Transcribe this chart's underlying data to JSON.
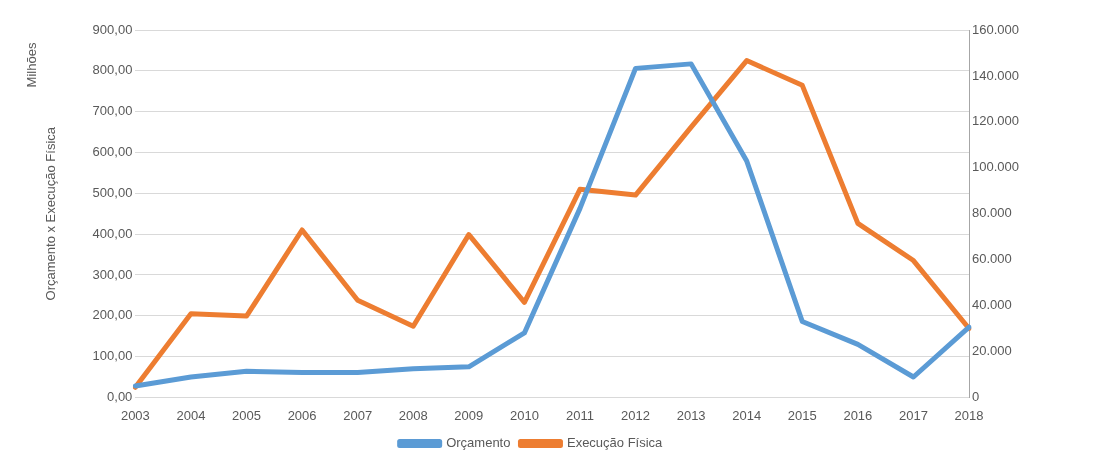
{
  "chart_data": {
    "type": "line",
    "ylabel": "Orçamento x Execução Física",
    "annotations": [
      "Milhões"
    ],
    "categories": [
      "2003",
      "2004",
      "2005",
      "2006",
      "2007",
      "2008",
      "2009",
      "2010",
      "2011",
      "2012",
      "2013",
      "2014",
      "2015",
      "2016",
      "2017",
      "2018"
    ],
    "series": [
      {
        "name": "Orçamento",
        "color": "#5b9bd5",
        "values": [
          28,
          50,
          64,
          61,
          61,
          70,
          75,
          158,
          463,
          806,
          817,
          579,
          186,
          130,
          50,
          172
        ]
      },
      {
        "name": "Execução Física",
        "color": "#ed7d31",
        "axis": "y2",
        "values": [
          4400,
          36400,
          35400,
          72900,
          42300,
          31000,
          70900,
          41400,
          90600,
          88100,
          117700,
          146700,
          135900,
          75800,
          59600,
          30000
        ]
      }
    ],
    "ylim": [
      0,
      900
    ],
    "yticks": [
      {
        "value": 0,
        "label": "0,00"
      },
      {
        "value": 100,
        "label": "100,00"
      },
      {
        "value": 200,
        "label": "200,00"
      },
      {
        "value": 300,
        "label": "300,00"
      },
      {
        "value": 400,
        "label": "400,00"
      },
      {
        "value": 500,
        "label": "500,00"
      },
      {
        "value": 600,
        "label": "600,00"
      },
      {
        "value": 700,
        "label": "700,00"
      },
      {
        "value": 800,
        "label": "800,00"
      },
      {
        "value": 900,
        "label": "900,00"
      }
    ],
    "y2lim": [
      0,
      160000
    ],
    "y2ticks": [
      0,
      {
        "value": 20000,
        "label": "20.000"
      },
      {
        "value": 40000,
        "label": "40.000"
      },
      {
        "value": 60000,
        "label": "60.000"
      },
      {
        "value": 80000,
        "label": "80.000"
      },
      {
        "value": 100000,
        "label": "100.000"
      },
      {
        "value": 120000,
        "label": "120.000"
      },
      {
        "value": 140000,
        "label": "140.000"
      },
      {
        "value": 160000,
        "label": "160.000"
      }
    ],
    "grid": "y",
    "legend": "bottom",
    "marker": "none",
    "line_style": "solid"
  }
}
